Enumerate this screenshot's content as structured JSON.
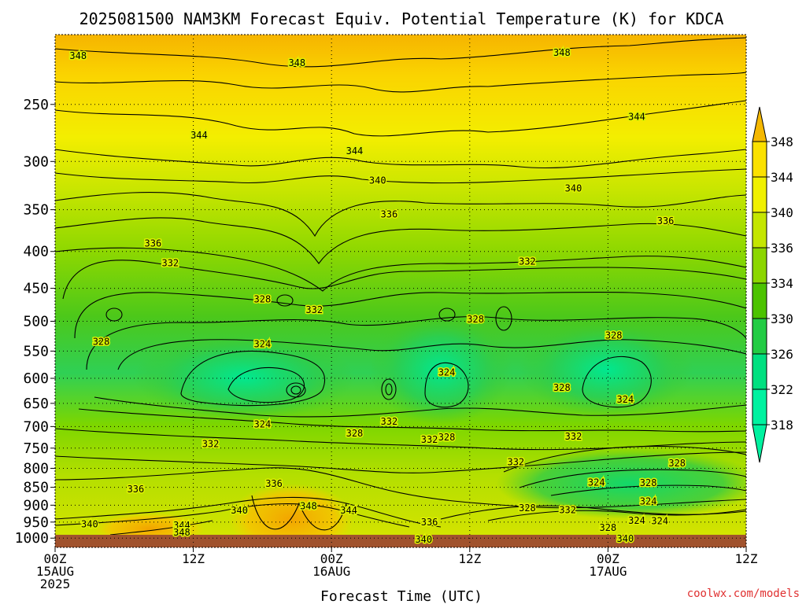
{
  "chart_data": {
    "type": "contour",
    "title": "2025081500 NAM3KM Forecast Equiv. Potential Temperature (K) for KDCA",
    "xlabel": "Forecast Time (UTC)",
    "ylabel": "",
    "credit": "coolwx.com/models",
    "x_ticks": [
      {
        "hours": 0,
        "line1": "00Z",
        "line2": "15AUG",
        "line3": "2025"
      },
      {
        "hours": 12,
        "line1": "12Z",
        "line2": "",
        "line3": ""
      },
      {
        "hours": 24,
        "line1": "00Z",
        "line2": "16AUG",
        "line3": ""
      },
      {
        "hours": 36,
        "line1": "12Z",
        "line2": "",
        "line3": ""
      },
      {
        "hours": 48,
        "line1": "00Z",
        "line2": "17AUG",
        "line3": ""
      },
      {
        "hours": 60,
        "line1": "12Z",
        "line2": "",
        "line3": ""
      }
    ],
    "xlim_hours": [
      0,
      60
    ],
    "y_ticks": [
      250,
      300,
      350,
      400,
      450,
      500,
      550,
      600,
      650,
      700,
      750,
      800,
      850,
      900,
      950,
      1000
    ],
    "ylim": [
      200,
      1030
    ],
    "y_scale": "log-pressure",
    "grid": true,
    "colorbar": {
      "levels": [
        348,
        344,
        340,
        336,
        334,
        330,
        326,
        322,
        318
      ],
      "colors": [
        "#f5b800",
        "#fbe100",
        "#f0f000",
        "#c4e600",
        "#8cd600",
        "#4cc300",
        "#22cc44",
        "#00e080",
        "#00f2a0"
      ],
      "placement": "right"
    },
    "contour_labels": [
      {
        "text": "348",
        "hours": 2.0,
        "p": 214
      },
      {
        "text": "348",
        "hours": 21.0,
        "p": 219
      },
      {
        "text": "348",
        "hours": 44.0,
        "p": 212
      },
      {
        "text": "344",
        "hours": 12.5,
        "p": 276
      },
      {
        "text": "344",
        "hours": 26.0,
        "p": 290
      },
      {
        "text": "344",
        "hours": 50.5,
        "p": 260
      },
      {
        "text": "340",
        "hours": 28.0,
        "p": 319
      },
      {
        "text": "340",
        "hours": 45.0,
        "p": 327
      },
      {
        "text": "336",
        "hours": 8.5,
        "p": 390
      },
      {
        "text": "336",
        "hours": 29.0,
        "p": 355
      },
      {
        "text": "336",
        "hours": 53.0,
        "p": 363
      },
      {
        "text": "332",
        "hours": 10.0,
        "p": 415
      },
      {
        "text": "332",
        "hours": 41.0,
        "p": 413
      },
      {
        "text": "328",
        "hours": 18.0,
        "p": 466
      },
      {
        "text": "328",
        "hours": 4.0,
        "p": 534
      },
      {
        "text": "328",
        "hours": 36.5,
        "p": 497
      },
      {
        "text": "328",
        "hours": 48.5,
        "p": 523
      },
      {
        "text": "332",
        "hours": 22.5,
        "p": 482
      },
      {
        "text": "324",
        "hours": 18.0,
        "p": 538
      },
      {
        "text": "324",
        "hours": 34.0,
        "p": 589
      },
      {
        "text": "324",
        "hours": 49.5,
        "p": 642
      },
      {
        "text": "328",
        "hours": 44.0,
        "p": 618
      },
      {
        "text": "324",
        "hours": 18.0,
        "p": 695
      },
      {
        "text": "332",
        "hours": 29.0,
        "p": 689
      },
      {
        "text": "328",
        "hours": 26.0,
        "p": 715
      },
      {
        "text": "332",
        "hours": 32.5,
        "p": 730
      },
      {
        "text": "328",
        "hours": 34.0,
        "p": 724
      },
      {
        "text": "332",
        "hours": 45.0,
        "p": 723
      },
      {
        "text": "332",
        "hours": 13.5,
        "p": 740
      },
      {
        "text": "332",
        "hours": 40.0,
        "p": 784
      },
      {
        "text": "328",
        "hours": 54.0,
        "p": 787
      },
      {
        "text": "336",
        "hours": 7.0,
        "p": 855
      },
      {
        "text": "336",
        "hours": 19.0,
        "p": 840
      },
      {
        "text": "324",
        "hours": 47.0,
        "p": 837
      },
      {
        "text": "328",
        "hours": 51.5,
        "p": 838
      },
      {
        "text": "340",
        "hours": 16.0,
        "p": 915
      },
      {
        "text": "348",
        "hours": 22.0,
        "p": 903
      },
      {
        "text": "344",
        "hours": 25.5,
        "p": 915
      },
      {
        "text": "328",
        "hours": 41.0,
        "p": 908
      },
      {
        "text": "332",
        "hours": 44.5,
        "p": 914
      },
      {
        "text": "324",
        "hours": 51.5,
        "p": 889
      },
      {
        "text": "340",
        "hours": 3.0,
        "p": 956
      },
      {
        "text": "344",
        "hours": 11.0,
        "p": 960
      },
      {
        "text": "348",
        "hours": 11.0,
        "p": 982
      },
      {
        "text": "336",
        "hours": 32.5,
        "p": 950
      },
      {
        "text": "328",
        "hours": 48.0,
        "p": 967
      },
      {
        "text": "324",
        "hours": 50.5,
        "p": 946
      },
      {
        "text": "324",
        "hours": 52.5,
        "p": 947
      },
      {
        "text": "340",
        "hours": 32.0,
        "p": 1004
      },
      {
        "text": "340",
        "hours": 49.5,
        "p": 1002
      }
    ]
  }
}
